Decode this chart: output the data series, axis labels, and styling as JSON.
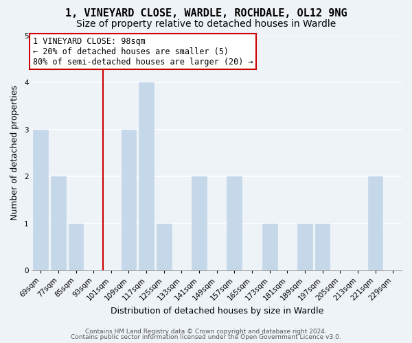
{
  "title": "1, VINEYARD CLOSE, WARDLE, ROCHDALE, OL12 9NG",
  "subtitle": "Size of property relative to detached houses in Wardle",
  "xlabel": "Distribution of detached houses by size in Wardle",
  "ylabel": "Number of detached properties",
  "categories": [
    "69sqm",
    "77sqm",
    "85sqm",
    "93sqm",
    "101sqm",
    "109sqm",
    "117sqm",
    "125sqm",
    "133sqm",
    "141sqm",
    "149sqm",
    "157sqm",
    "165sqm",
    "173sqm",
    "181sqm",
    "189sqm",
    "197sqm",
    "205sqm",
    "213sqm",
    "221sqm",
    "229sqm"
  ],
  "values": [
    3,
    2,
    1,
    0,
    0,
    3,
    4,
    1,
    0,
    2,
    0,
    2,
    0,
    1,
    0,
    1,
    1,
    0,
    0,
    2,
    0
  ],
  "bar_color": "#c5d8ea",
  "bar_edge_color": "#c5d8ea",
  "reference_line_x_label": "101sqm",
  "reference_line_color": "#cc0000",
  "ylim": [
    0,
    5
  ],
  "yticks": [
    0,
    1,
    2,
    3,
    4,
    5
  ],
  "annotation_text": "1 VINEYARD CLOSE: 98sqm\n← 20% of detached houses are smaller (5)\n80% of semi-detached houses are larger (20) →",
  "annotation_box_edge_color": "#cc0000",
  "annotation_box_face_color": "#ffffff",
  "footer_line1": "Contains HM Land Registry data © Crown copyright and database right 2024.",
  "footer_line2": "Contains public sector information licensed under the Open Government Licence v3.0.",
  "background_color": "#eef3f8",
  "plot_background_color": "#eef3f8",
  "title_fontsize": 11,
  "subtitle_fontsize": 10,
  "xlabel_fontsize": 9,
  "ylabel_fontsize": 9,
  "tick_fontsize": 7.5,
  "footer_fontsize": 6.5,
  "annotation_fontsize": 8.5
}
